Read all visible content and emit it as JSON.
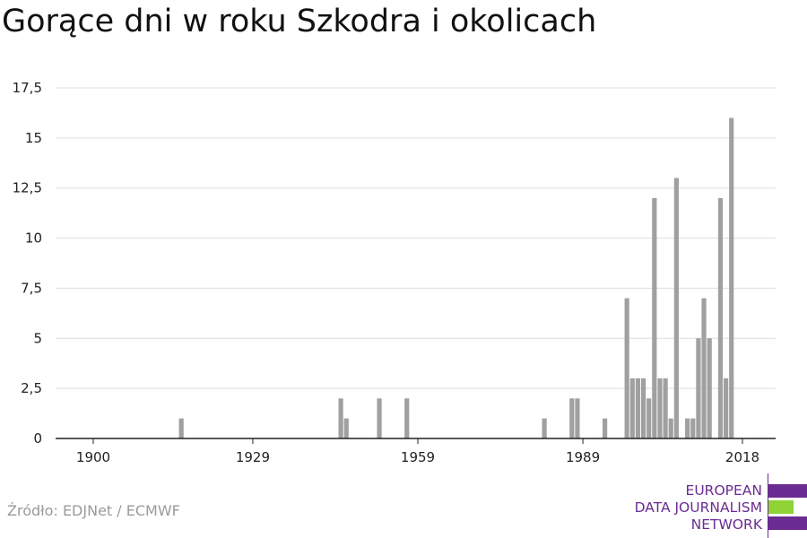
{
  "title": "Gorące dni w roku Szkodra i okolicach",
  "source": "Źródło: EDJNet / ECMWF",
  "logo": {
    "lines": [
      "EUROPEAN",
      "DATA JOURNALISM",
      "NETWORK"
    ],
    "colors": {
      "purple": "#6b2c91",
      "green": "#8fd336"
    }
  },
  "chart_data": {
    "type": "bar",
    "title": "Gorące dni w roku Szkodra i okolicach",
    "xlabel": "",
    "ylabel": "",
    "xlim": [
      1900,
      2018
    ],
    "ylim": [
      0,
      17.5
    ],
    "x_ticks": [
      1900,
      1929,
      1959,
      1989,
      2018
    ],
    "y_ticks": [
      0,
      2.5,
      5,
      7.5,
      10,
      12.5,
      15,
      17.5
    ],
    "y_tick_labels": [
      "0",
      "2,5",
      "5",
      "7,5",
      "10",
      "12,5",
      "15",
      "17,5"
    ],
    "grid": true,
    "bar_color": "#a0a0a0",
    "x": [
      1916,
      1945,
      1946,
      1952,
      1957,
      1982,
      1987,
      1988,
      1993,
      1997,
      1998,
      1999,
      2000,
      2001,
      2002,
      2003,
      2004,
      2005,
      2006,
      2007,
      2008,
      2009,
      2010,
      2011,
      2012,
      2013,
      2014,
      2015,
      2016,
      2017
    ],
    "values": [
      1,
      2,
      1,
      2,
      2,
      1,
      2,
      2,
      1,
      7,
      3,
      3,
      3,
      2,
      12,
      3,
      3,
      1,
      13,
      0,
      1,
      1,
      5,
      7,
      5,
      0,
      12,
      3,
      16,
      0
    ]
  }
}
